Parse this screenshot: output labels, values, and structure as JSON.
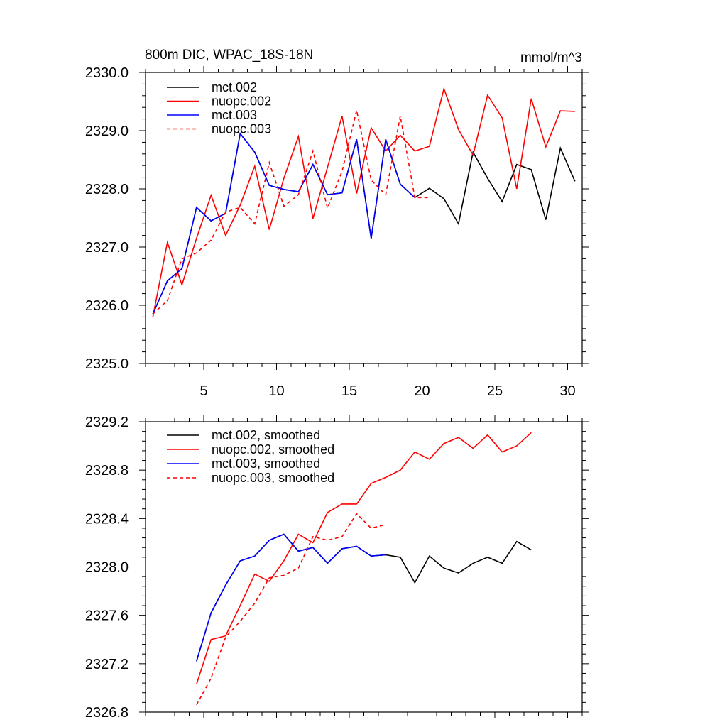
{
  "chart_data": [
    {
      "type": "line",
      "title": "800m DIC, WPAC_18S-18N",
      "units": "mmol/m^3",
      "xlabel": "",
      "ylabel": "",
      "xlim": [
        1,
        31
      ],
      "ylim": [
        2325.0,
        2330.0
      ],
      "x_ticks": [
        5,
        10,
        15,
        20,
        25,
        30
      ],
      "x_tick_labels": [
        "5",
        "10",
        "15",
        "20",
        "25",
        "30"
      ],
      "y_ticks": [
        2325.0,
        2326.0,
        2327.0,
        2328.0,
        2329.0,
        2330.0
      ],
      "y_tick_labels": [
        "2325.0",
        "2326.0",
        "2327.0",
        "2328.0",
        "2329.0",
        "2330.0"
      ],
      "legend_position": "top-left",
      "series": [
        {
          "name": "mct.002",
          "color": "#000000",
          "dash": "solid",
          "x": [
            1.5,
            2.5,
            3.5,
            4.5,
            5.5,
            6.5,
            7.5,
            8.5,
            9.5,
            10.5,
            11.5,
            12.5,
            13.5,
            14.5,
            15.5,
            16.5,
            17.5,
            18.5,
            19.5,
            20.5,
            21.5,
            22.5,
            23.5,
            24.5,
            25.5,
            26.5,
            27.5,
            28.5,
            29.5,
            30.5
          ],
          "values": [
            2325.85,
            2326.42,
            2326.63,
            2327.68,
            2327.45,
            2327.58,
            2328.95,
            2328.63,
            2328.06,
            2327.99,
            2327.95,
            2328.42,
            2327.9,
            2327.93,
            2328.85,
            2327.15,
            2328.85,
            2328.08,
            2327.85,
            2328.01,
            2327.83,
            2327.4,
            2328.63,
            2328.18,
            2327.78,
            2328.42,
            2328.33,
            2327.47,
            2328.7,
            2328.13
          ]
        },
        {
          "name": "nuopc.002",
          "color": "#ff0000",
          "dash": "solid",
          "x": [
            1.5,
            2.5,
            3.5,
            4.5,
            5.5,
            6.5,
            7.5,
            8.5,
            9.5,
            10.5,
            11.5,
            12.5,
            13.5,
            14.5,
            15.5,
            16.5,
            17.5,
            18.5,
            19.5,
            20.5,
            21.5,
            22.5,
            23.5,
            24.5,
            25.5,
            26.5,
            27.5,
            28.5,
            29.5,
            30.5
          ],
          "values": [
            2325.8,
            2327.08,
            2326.35,
            2327.15,
            2327.89,
            2327.2,
            2327.72,
            2328.39,
            2327.3,
            2328.18,
            2328.9,
            2327.49,
            2328.37,
            2329.25,
            2327.92,
            2329.05,
            2328.65,
            2328.92,
            2328.65,
            2328.73,
            2329.72,
            2329.02,
            2328.58,
            2329.61,
            2329.22,
            2328.0,
            2329.55,
            2328.72,
            2329.34,
            2329.33
          ]
        },
        {
          "name": "mct.003",
          "color": "#0000ff",
          "dash": "solid",
          "x": [
            1.5,
            2.5,
            3.5,
            4.5,
            5.5,
            6.5,
            7.5,
            8.5,
            9.5,
            10.5,
            11.5,
            12.5,
            13.5,
            14.5,
            15.5,
            16.5,
            17.5,
            18.5,
            19.5
          ],
          "values": [
            2325.85,
            2326.42,
            2326.63,
            2327.68,
            2327.45,
            2327.58,
            2328.95,
            2328.63,
            2328.06,
            2327.99,
            2327.95,
            2328.42,
            2327.9,
            2327.93,
            2328.85,
            2327.15,
            2328.85,
            2328.08,
            2327.85
          ]
        },
        {
          "name": "nuopc.003",
          "color": "#ff0000",
          "dash": "dashed",
          "x": [
            1.5,
            2.5,
            3.5,
            4.5,
            5.5,
            6.5,
            7.5,
            8.5,
            9.5,
            10.5,
            11.5,
            12.5,
            13.5,
            14.5,
            15.5,
            16.5,
            17.5,
            18.5,
            19.5,
            20.5
          ],
          "values": [
            2325.85,
            2326.08,
            2326.8,
            2326.9,
            2327.12,
            2327.6,
            2327.68,
            2327.4,
            2328.45,
            2327.7,
            2327.9,
            2328.65,
            2327.67,
            2328.3,
            2329.35,
            2328.15,
            2327.9,
            2329.25,
            2327.85,
            2327.85
          ]
        }
      ]
    },
    {
      "type": "line",
      "title": "",
      "xlabel": "",
      "ylabel": "",
      "xlim": [
        1,
        31
      ],
      "ylim": [
        2326.8,
        2329.2
      ],
      "x_ticks": [
        5,
        10,
        15,
        20,
        25,
        30
      ],
      "y_ticks": [
        2326.8,
        2327.2,
        2327.6,
        2328.0,
        2328.4,
        2328.8,
        2329.2
      ],
      "y_tick_labels": [
        "2326.8",
        "2327.2",
        "2327.6",
        "2328.0",
        "2328.4",
        "2328.8",
        "2329.2"
      ],
      "legend_position": "top-left",
      "series": [
        {
          "name": "mct.002, smoothed",
          "color": "#000000",
          "dash": "solid",
          "x": [
            4.5,
            5.5,
            6.5,
            7.5,
            8.5,
            9.5,
            10.5,
            11.5,
            12.5,
            13.5,
            14.5,
            15.5,
            16.5,
            17.5,
            18.5,
            19.5,
            20.5,
            21.5,
            22.5,
            23.5,
            24.5,
            25.5,
            26.5,
            27.5
          ],
          "values": [
            2327.22,
            2327.62,
            2327.85,
            2328.05,
            2328.09,
            2328.22,
            2328.27,
            2328.13,
            2328.16,
            2328.03,
            2328.15,
            2328.17,
            2328.09,
            2328.1,
            2328.08,
            2327.87,
            2328.09,
            2327.99,
            2327.95,
            2328.03,
            2328.08,
            2328.03,
            2328.21,
            2328.14
          ]
        },
        {
          "name": "nuopc.002, smoothed",
          "color": "#ff0000",
          "dash": "solid",
          "x": [
            4.5,
            5.5,
            6.5,
            7.5,
            8.5,
            9.5,
            10.5,
            11.5,
            12.5,
            13.5,
            14.5,
            15.5,
            16.5,
            17.5,
            18.5,
            19.5,
            20.5,
            21.5,
            22.5,
            23.5,
            24.5,
            25.5,
            26.5,
            27.5
          ],
          "values": [
            2327.03,
            2327.4,
            2327.43,
            2327.68,
            2327.94,
            2327.88,
            2328.05,
            2328.27,
            2328.2,
            2328.45,
            2328.52,
            2328.52,
            2328.69,
            2328.74,
            2328.8,
            2328.95,
            2328.89,
            2329.02,
            2329.07,
            2328.98,
            2329.09,
            2328.95,
            2329.0,
            2329.11
          ]
        },
        {
          "name": "mct.003, smoothed",
          "color": "#0000ff",
          "dash": "solid",
          "x": [
            4.5,
            5.5,
            6.5,
            7.5,
            8.5,
            9.5,
            10.5,
            11.5,
            12.5,
            13.5,
            14.5,
            15.5,
            16.5,
            17.5
          ],
          "values": [
            2327.22,
            2327.62,
            2327.85,
            2328.05,
            2328.09,
            2328.22,
            2328.27,
            2328.13,
            2328.16,
            2328.03,
            2328.15,
            2328.17,
            2328.09,
            2328.1
          ]
        },
        {
          "name": "nuopc.003, smoothed",
          "color": "#ff0000",
          "dash": "dashed",
          "x": [
            4.5,
            5.5,
            6.5,
            7.5,
            8.5,
            9.5,
            10.5,
            11.5,
            12.5,
            13.5,
            14.5,
            15.5,
            16.5,
            17.5
          ],
          "values": [
            2326.86,
            2327.08,
            2327.42,
            2327.55,
            2327.7,
            2327.91,
            2327.93,
            2327.99,
            2328.25,
            2328.22,
            2328.25,
            2328.44,
            2328.32,
            2328.35
          ]
        }
      ]
    }
  ]
}
